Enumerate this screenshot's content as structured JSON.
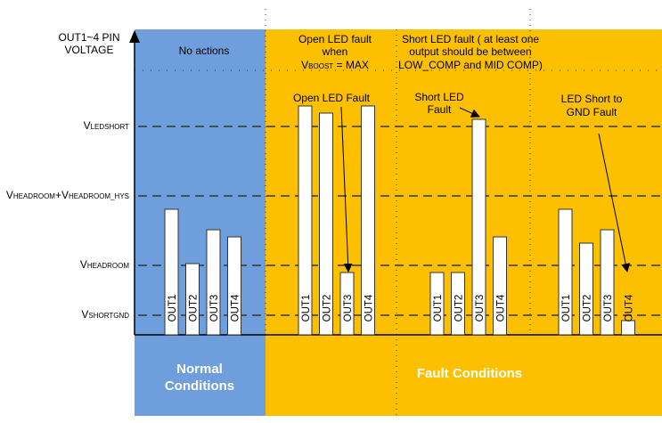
{
  "colors": {
    "normal": "#6f9edc",
    "fault": "#fdc000",
    "bar": "#ffffff"
  },
  "y_axis": {
    "line1": "OUT1~4 PIN",
    "line2": "VOLTAGE"
  },
  "levels": [
    {
      "main": "V",
      "sub": "LEDSHORT",
      "main2": "",
      "sub2": ""
    },
    {
      "main": "V",
      "sub": "HEADROOM",
      "main2": "+V",
      "sub2": "HEADROOM_HYS"
    },
    {
      "main": "V",
      "sub": "HEADROOM",
      "main2": "",
      "sub2": ""
    },
    {
      "main": "V",
      "sub": "SHORTGND",
      "main2": "",
      "sub2": ""
    }
  ],
  "sections": {
    "normal": {
      "header": "No actions",
      "footer1": "Normal",
      "footer2": "Conditions"
    },
    "open": {
      "header1": "Open LED fault",
      "header2": "when",
      "header3_main": "V",
      "header3_sub": "BOOST",
      "header3_rest": " = MAX",
      "callout": "Open LED Fault"
    },
    "short": {
      "header1": "Short LED fault ( at least one",
      "header2": "output should be between",
      "header3": "LOW_COMP  and MID COMP)",
      "callout1": "Short LED",
      "callout2": "Fault"
    },
    "gnd": {
      "callout1": "LED Short to",
      "callout2": "GND Fault"
    },
    "fault_footer": "Fault Conditions"
  },
  "bar_groups": [
    {
      "group": "normal",
      "bars": [
        {
          "label": "OUT1",
          "level": "between VHEADROOM and VHEADROOM+HYS"
        },
        {
          "label": "OUT2",
          "level": "just above VHEADROOM"
        },
        {
          "label": "OUT3",
          "level": "between VHEADROOM and VHEADROOM+HYS"
        },
        {
          "label": "OUT4",
          "level": "between VHEADROOM and VHEADROOM+HYS"
        }
      ]
    },
    {
      "group": "open",
      "bars": [
        {
          "label": "OUT1",
          "level": "above VLEDSHORT"
        },
        {
          "label": "OUT2",
          "level": "above VLEDSHORT"
        },
        {
          "label": "OUT3",
          "level": "below VHEADROOM"
        },
        {
          "label": "OUT4",
          "level": "above VLEDSHORT"
        }
      ]
    },
    {
      "group": "short",
      "bars": [
        {
          "label": "OUT1",
          "level": "below VHEADROOM"
        },
        {
          "label": "OUT2",
          "level": "below VHEADROOM"
        },
        {
          "label": "OUT3",
          "level": "above VLEDSHORT"
        },
        {
          "label": "OUT4",
          "level": "between VHEADROOM and VHEADROOM+HYS"
        }
      ]
    },
    {
      "group": "gnd",
      "bars": [
        {
          "label": "OUT1",
          "level": "between VHEADROOM and VHEADROOM+HYS"
        },
        {
          "label": "OUT2",
          "level": "between VHEADROOM and VHEADROOM+HYS"
        },
        {
          "label": "OUT3",
          "level": "between VHEADROOM and VHEADROOM+HYS"
        },
        {
          "label": "OUT4",
          "level": "below VSHORTGND"
        }
      ]
    }
  ]
}
